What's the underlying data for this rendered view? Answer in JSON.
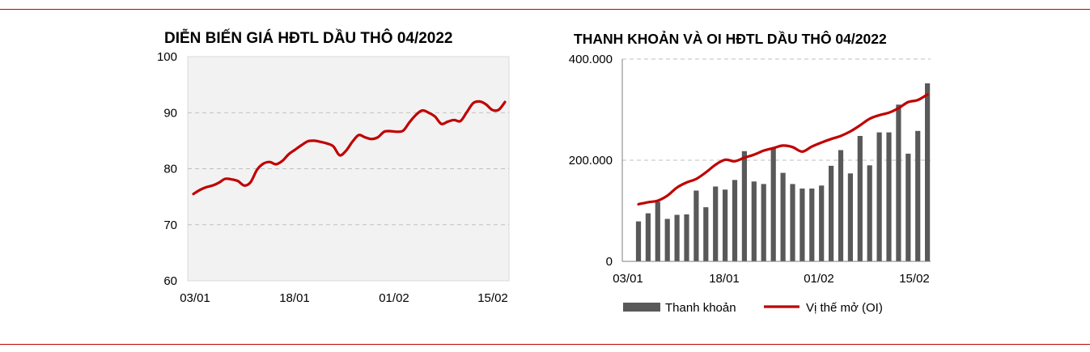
{
  "chart_data": [
    {
      "type": "line",
      "title": "DIỄN BIẾN GIÁ HĐTL DẦU THÔ 04/2022",
      "xlabel": "",
      "ylabel": "",
      "x_tick_labels": [
        "03/01",
        "18/01",
        "01/02",
        "15/02"
      ],
      "y_tick_labels": [
        "60",
        "70",
        "80",
        "90",
        "100"
      ],
      "ylim": [
        60,
        100
      ],
      "grid": "horizontal dashed",
      "plot_background": "#f2f2f2",
      "series": [
        {
          "color": "#c00000",
          "values": [
            75.5,
            76.2,
            76.7,
            77.0,
            77.5,
            78.2,
            78.1,
            77.8,
            77.0,
            77.6,
            79.8,
            80.9,
            81.2,
            80.8,
            81.4,
            82.6,
            83.4,
            84.2,
            84.9,
            85.0,
            84.8,
            84.5,
            84.0,
            82.4,
            83.2,
            84.8,
            86.0,
            85.6,
            85.3,
            85.6,
            86.6,
            86.7,
            86.6,
            86.8,
            88.3,
            89.6,
            90.4,
            90.0,
            89.3,
            88.0,
            88.4,
            88.7,
            88.5,
            90.1,
            91.7,
            92.0,
            91.5,
            90.5,
            90.5,
            91.9
          ]
        }
      ]
    },
    {
      "type": "bar+line",
      "title": "THANH KHOẢN VÀ OI HĐTL DẦU THÔ 04/2022",
      "xlabel": "",
      "ylabel": "",
      "x_tick_labels": [
        "03/01",
        "18/01",
        "01/02",
        "15/02"
      ],
      "y_tick_labels": [
        "0",
        "200.000",
        "400.000"
      ],
      "ylim": [
        0,
        400000
      ],
      "grid": "horizontal dashed",
      "legend": "bottom",
      "series": [
        {
          "name": "Thanh khoản",
          "type": "bar",
          "color": "#595959",
          "values": [
            79000,
            95000,
            118000,
            84000,
            92000,
            93000,
            140000,
            107000,
            148000,
            142000,
            161000,
            218000,
            158000,
            153000,
            225000,
            175000,
            153000,
            144000,
            144000,
            150000,
            189000,
            220000,
            174000,
            248000,
            190000,
            255000,
            255000,
            310000,
            213000,
            258000,
            352000
          ]
        },
        {
          "name": "Vị thế mở (OI)",
          "type": "line",
          "color": "#c00000",
          "values": [
            113000,
            117000,
            120000,
            130000,
            146000,
            156000,
            163000,
            176000,
            191000,
            201000,
            198000,
            205000,
            211000,
            219000,
            224000,
            229000,
            226000,
            217000,
            227000,
            235000,
            242000,
            248000,
            257000,
            269000,
            282000,
            289000,
            294000,
            303000,
            315000,
            319000,
            330000
          ]
        }
      ]
    }
  ]
}
